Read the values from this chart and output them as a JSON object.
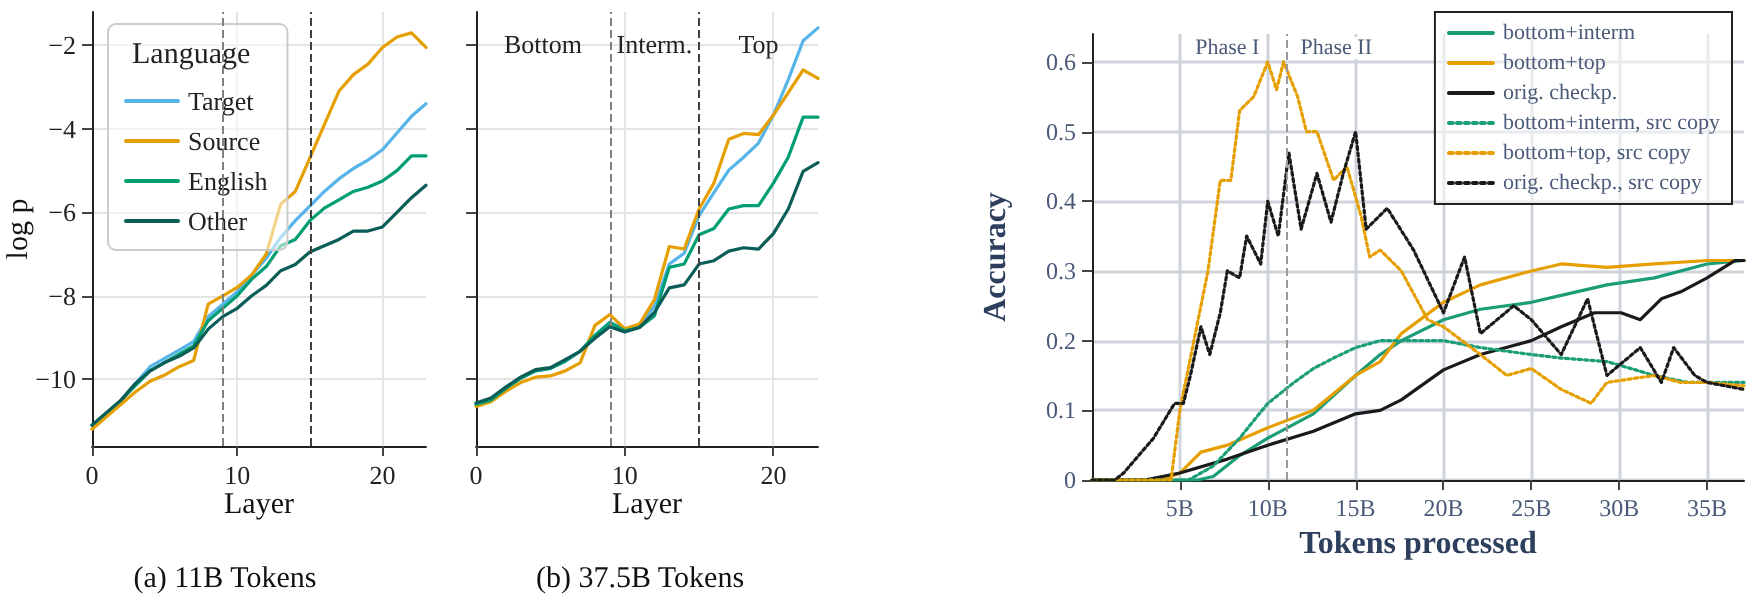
{
  "chart_data": [
    {
      "type": "line",
      "title": "(a) 11B Tokens",
      "xlabel": "Layer",
      "ylabel": "log p",
      "legend_title": "Language",
      "legend": "top left",
      "grid": true,
      "marker": "none",
      "line_style": "solid",
      "x": [
        0,
        1,
        2,
        3,
        4,
        5,
        6,
        7,
        8,
        9,
        10,
        11,
        12,
        13,
        14,
        15,
        16,
        17,
        18,
        19,
        20,
        21,
        22,
        23
      ],
      "xlim": [
        0,
        23
      ],
      "xticks": [
        0,
        10,
        20
      ],
      "ylim": [
        -11.6,
        -1.2
      ],
      "yticks": [
        -10,
        -8,
        -6,
        -4,
        -2
      ],
      "ref_lines": [
        {
          "axis": "x",
          "value": 9,
          "color": "#808080",
          "line_style": "dashed"
        },
        {
          "axis": "x",
          "value": 15,
          "color": "#404040",
          "line_style": "dashed"
        }
      ],
      "series": [
        {
          "name": "Target",
          "color": "#56b4e9",
          "values": [
            null,
            null,
            -10.5,
            -10.1,
            -9.7,
            -9.5,
            -9.3,
            -9.1,
            -8.5,
            -8.2,
            -7.9,
            -7.5,
            -7.1,
            -6.6,
            -6.2,
            -5.85,
            -5.5,
            -5.2,
            -4.95,
            -4.75,
            -4.5,
            -4.1,
            -3.7,
            -3.4
          ]
        },
        {
          "name": "Source",
          "color": "#e69f00",
          "values": [
            -11.2,
            -10.9,
            -10.6,
            -10.3,
            -10.05,
            -9.9,
            -9.7,
            -9.55,
            -8.2,
            -8.0,
            -7.8,
            -7.5,
            -7.0,
            -5.8,
            -5.5,
            -4.7,
            -3.9,
            -3.1,
            -2.7,
            -2.45,
            -2.05,
            -1.8,
            -1.7,
            -2.05
          ]
        },
        {
          "name": "English",
          "color": "#009e73",
          "values": [
            -11.1,
            -10.8,
            -10.5,
            -10.15,
            -9.8,
            -9.6,
            -9.4,
            -9.2,
            -8.6,
            -8.3,
            -8.0,
            -7.6,
            -7.3,
            -6.8,
            -6.65,
            -6.2,
            -5.9,
            -5.7,
            -5.5,
            -5.4,
            -5.25,
            -5.0,
            -4.65,
            -4.65
          ]
        },
        {
          "name": "Other",
          "color": "#0b5d58",
          "values": [
            -11.1,
            -10.8,
            -10.5,
            -10.1,
            -9.8,
            -9.6,
            -9.45,
            -9.25,
            -8.8,
            -8.5,
            -8.3,
            -8.0,
            -7.75,
            -7.4,
            -7.25,
            -6.95,
            -6.8,
            -6.65,
            -6.45,
            -6.45,
            -6.35,
            -6.0,
            -5.65,
            -5.35
          ]
        }
      ]
    },
    {
      "type": "line",
      "title": "(b) 37.5B Tokens",
      "xlabel": "Layer",
      "grid": true,
      "marker": "none",
      "line_style": "solid",
      "tick_labels": "x",
      "x": [
        0,
        1,
        2,
        3,
        4,
        5,
        6,
        7,
        8,
        9,
        10,
        11,
        12,
        13,
        14,
        15,
        16,
        17,
        18,
        19,
        20,
        21,
        22,
        23
      ],
      "xlim": [
        0,
        23
      ],
      "xticks": [
        0,
        10,
        20
      ],
      "ylim": [
        -11.6,
        -1.2
      ],
      "yticks": [
        -10,
        -8,
        -6,
        -4,
        -2
      ],
      "ref_lines": [
        {
          "axis": "x",
          "value": 9,
          "color": "#808080",
          "line_style": "dashed"
        },
        {
          "axis": "x",
          "value": 15,
          "color": "#404040",
          "line_style": "dashed"
        }
      ],
      "annotations": [
        "Bottom",
        "Interm.",
        "Top"
      ],
      "series": [
        {
          "color": "#56b4e9",
          "values": [
            null,
            null,
            null,
            -9.98,
            -9.8,
            -9.74,
            -9.57,
            -9.33,
            -8.95,
            -8.64,
            -8.79,
            -8.71,
            -8.25,
            -7.24,
            -6.98,
            -6.08,
            -5.53,
            -4.99,
            -4.68,
            -4.34,
            -3.67,
            -2.82,
            -1.89,
            -1.58
          ]
        },
        {
          "color": "#e69f00",
          "values": [
            -10.65,
            -10.54,
            -10.29,
            -10.08,
            -9.95,
            -9.92,
            -9.8,
            -9.61,
            -8.71,
            -8.45,
            -8.79,
            -8.68,
            -8.09,
            -6.82,
            -6.88,
            -5.92,
            -5.3,
            -4.25,
            -4.11,
            -4.14,
            -3.67,
            -3.13,
            -2.59,
            -2.79
          ]
        },
        {
          "color": "#009e73",
          "values": [
            -10.6,
            -10.5,
            -10.22,
            -9.98,
            -9.8,
            -9.74,
            -9.57,
            -9.33,
            -8.95,
            -8.64,
            -8.84,
            -8.76,
            -8.48,
            -7.32,
            -7.24,
            -6.54,
            -6.39,
            -5.92,
            -5.84,
            -5.84,
            -5.3,
            -4.68,
            -3.72,
            -3.72
          ]
        },
        {
          "color": "#0b5d58",
          "values": [
            -10.57,
            -10.45,
            -10.19,
            -9.95,
            -9.77,
            -9.72,
            -9.53,
            -9.33,
            -9.02,
            -8.74,
            -8.87,
            -8.76,
            -8.4,
            -7.81,
            -7.74,
            -7.24,
            -7.16,
            -6.93,
            -6.85,
            -6.88,
            -6.51,
            -5.92,
            -5.02,
            -4.81
          ]
        }
      ]
    },
    {
      "type": "line",
      "xlabel": "Tokens processed",
      "ylabel": "Accuracy",
      "legend": "top right",
      "grid": true,
      "marker": "none",
      "xlim": [
        0,
        37.1
      ],
      "xticks": [
        {
          "value": 5,
          "label": "5B"
        },
        {
          "value": 10,
          "label": "10B"
        },
        {
          "value": 15,
          "label": "15B"
        },
        {
          "value": 20,
          "label": "20B"
        },
        {
          "value": 25,
          "label": "25B"
        },
        {
          "value": 30,
          "label": "30B"
        },
        {
          "value": 35,
          "label": "35B"
        }
      ],
      "ylim": [
        0,
        0.64
      ],
      "yticks": [
        0,
        0.1,
        0.2,
        0.3,
        0.4,
        0.5,
        0.6
      ],
      "ref_lines": [
        {
          "axis": "x",
          "value": 11.1,
          "color": "#999999",
          "line_style": "dashed"
        }
      ],
      "annotations": [
        {
          "text": "Phase I",
          "x": 7.7,
          "y": 0.62
        },
        {
          "text": "Phase II",
          "x": 13.9,
          "y": 0.62
        }
      ],
      "series": [
        {
          "name": "bottom+interm",
          "color": "#1b9e77",
          "line_style": "solid",
          "x": [
            0,
            6,
            6.9,
            8.4,
            10,
            12.6,
            15,
            16.4,
            17.6,
            20,
            22.1,
            25,
            26.7,
            29.3,
            32,
            35,
            37.1
          ],
          "values": [
            0,
            0,
            0.005,
            0.035,
            0.06,
            0.095,
            0.15,
            0.18,
            0.2,
            0.23,
            0.245,
            0.255,
            0.265,
            0.28,
            0.29,
            0.31,
            0.315
          ]
        },
        {
          "name": "bottom+top",
          "color": "#e69f00",
          "line_style": "solid",
          "x": [
            0,
            4,
            5,
            6.2,
            7.7,
            10,
            12.6,
            15,
            16.4,
            17.6,
            20,
            22.1,
            25,
            26.7,
            29.3,
            32,
            35,
            37.1
          ],
          "values": [
            0,
            0,
            0.01,
            0.04,
            0.05,
            0.075,
            0.1,
            0.15,
            0.17,
            0.21,
            0.255,
            0.28,
            0.3,
            0.31,
            0.305,
            0.31,
            0.315,
            0.315
          ]
        },
        {
          "name": "orig. checkp.",
          "color": "#1a1a1a",
          "line_style": "solid",
          "x": [
            0,
            3,
            5,
            7.7,
            10,
            12.6,
            15,
            16.4,
            17.6,
            20,
            22.1,
            25,
            26.7,
            28.6,
            30.1,
            31.2,
            32.4,
            33.5,
            35,
            36.6,
            37.1
          ],
          "values": [
            0,
            0,
            0.01,
            0.03,
            0.05,
            0.07,
            0.095,
            0.1,
            0.115,
            0.158,
            0.18,
            0.2,
            0.22,
            0.24,
            0.24,
            0.23,
            0.26,
            0.27,
            0.29,
            0.315,
            0.315
          ]
        },
        {
          "name": "bottom+interm, src copy",
          "color": "#1b9e77",
          "line_style": "dotted",
          "x": [
            0,
            5.5,
            6.9,
            8.4,
            10,
            11.5,
            12.6,
            13.75,
            15,
            16.4,
            20,
            22.1,
            25,
            26.7,
            29.3,
            32,
            33.9,
            35,
            37.1
          ],
          "values": [
            0,
            0,
            0.02,
            0.06,
            0.11,
            0.14,
            0.16,
            0.175,
            0.19,
            0.2,
            0.2,
            0.19,
            0.18,
            0.175,
            0.17,
            0.15,
            0.14,
            0.14,
            0.14
          ]
        },
        {
          "name": "bottom+top, src copy",
          "color": "#e69f00",
          "line_style": "dotted",
          "x": [
            0,
            4.5,
            5,
            5.8,
            6.6,
            7.3,
            7.9,
            8.4,
            9.2,
            10,
            10.5,
            10.9,
            11.7,
            12.2,
            12.8,
            13.75,
            14.5,
            15.3,
            15.8,
            16.4,
            17.6,
            19.1,
            20,
            22.1,
            23.6,
            25,
            26.7,
            28.4,
            29.3,
            32,
            33.5,
            35,
            37.1
          ],
          "values": [
            0,
            0,
            0.1,
            0.2,
            0.3,
            0.43,
            0.43,
            0.53,
            0.55,
            0.6,
            0.56,
            0.6,
            0.55,
            0.5,
            0.5,
            0.43,
            0.45,
            0.38,
            0.32,
            0.33,
            0.3,
            0.23,
            0.22,
            0.18,
            0.15,
            0.16,
            0.13,
            0.11,
            0.14,
            0.15,
            0.14,
            0.14,
            0.135
          ]
        },
        {
          "name": "orig. checkp., src copy",
          "color": "#1a1a1a",
          "line_style": "dotted",
          "x": [
            0,
            1.3,
            1.8,
            3.5,
            4.7,
            5.2,
            5.6,
            6.2,
            6.7,
            7.3,
            7.7,
            8.4,
            8.8,
            9.6,
            10,
            10.6,
            11.2,
            11.9,
            12.8,
            13.6,
            14.3,
            15,
            15.6,
            16.8,
            18.3,
            20,
            21.2,
            22.1,
            24,
            25,
            26.7,
            28.2,
            29.3,
            31.2,
            32.4,
            33.1,
            34.3,
            35,
            37.1
          ],
          "values": [
            0,
            0,
            0.01,
            0.06,
            0.11,
            0.11,
            0.15,
            0.22,
            0.18,
            0.24,
            0.3,
            0.29,
            0.35,
            0.31,
            0.4,
            0.35,
            0.47,
            0.36,
            0.44,
            0.37,
            0.44,
            0.5,
            0.36,
            0.39,
            0.33,
            0.24,
            0.32,
            0.21,
            0.25,
            0.23,
            0.18,
            0.26,
            0.15,
            0.19,
            0.14,
            0.19,
            0.15,
            0.14,
            0.13
          ]
        }
      ]
    }
  ]
}
